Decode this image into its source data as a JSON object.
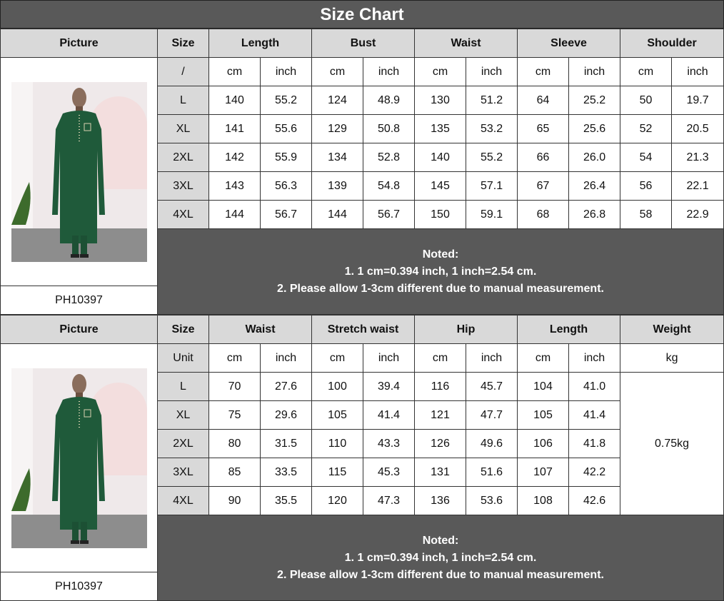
{
  "title": "Size Chart",
  "colors": {
    "title_bg": "#595959",
    "header_bg": "#d9d9d9",
    "notes_bg": "#595959",
    "robe": "#1f5a3a"
  },
  "sections": [
    {
      "picture_label": "Picture",
      "product_code": "PH10397",
      "size_label": "Size",
      "groups": [
        "Length",
        "Bust",
        "Waist",
        "Sleeve",
        "Shoulder"
      ],
      "unit_row_label": "/",
      "units": [
        "cm",
        "inch"
      ],
      "rows": [
        {
          "size": "L",
          "values": [
            "140",
            "55.2",
            "124",
            "48.9",
            "130",
            "51.2",
            "64",
            "25.2",
            "50",
            "19.7"
          ]
        },
        {
          "size": "XL",
          "values": [
            "141",
            "55.6",
            "129",
            "50.8",
            "135",
            "53.2",
            "65",
            "25.6",
            "52",
            "20.5"
          ]
        },
        {
          "size": "2XL",
          "values": [
            "142",
            "55.9",
            "134",
            "52.8",
            "140",
            "55.2",
            "66",
            "26.0",
            "54",
            "21.3"
          ]
        },
        {
          "size": "3XL",
          "values": [
            "143",
            "56.3",
            "139",
            "54.8",
            "145",
            "57.1",
            "67",
            "26.4",
            "56",
            "22.1"
          ]
        },
        {
          "size": "4XL",
          "values": [
            "144",
            "56.7",
            "144",
            "56.7",
            "150",
            "59.1",
            "68",
            "26.8",
            "58",
            "22.9"
          ]
        }
      ],
      "notes": [
        "Noted:",
        "1. 1 cm=0.394 inch, 1 inch=2.54 cm.",
        "2. Please allow 1-3cm different due to manual measurement."
      ]
    },
    {
      "picture_label": "Picture",
      "product_code": "PH10397",
      "size_label": "Size",
      "groups": [
        "Waist",
        "Stretch waist",
        "Hip",
        "Length"
      ],
      "extra_group": "Weight",
      "extra_unit": "kg",
      "extra_value": "0.75kg",
      "unit_row_label": "Unit",
      "units": [
        "cm",
        "inch"
      ],
      "rows": [
        {
          "size": "L",
          "values": [
            "70",
            "27.6",
            "100",
            "39.4",
            "116",
            "45.7",
            "104",
            "41.0"
          ]
        },
        {
          "size": "XL",
          "values": [
            "75",
            "29.6",
            "105",
            "41.4",
            "121",
            "47.7",
            "105",
            "41.4"
          ]
        },
        {
          "size": "2XL",
          "values": [
            "80",
            "31.5",
            "110",
            "43.3",
            "126",
            "49.6",
            "106",
            "41.8"
          ]
        },
        {
          "size": "3XL",
          "values": [
            "85",
            "33.5",
            "115",
            "45.3",
            "131",
            "51.6",
            "107",
            "42.2"
          ]
        },
        {
          "size": "4XL",
          "values": [
            "90",
            "35.5",
            "120",
            "47.3",
            "136",
            "53.6",
            "108",
            "42.6"
          ]
        }
      ],
      "notes": [
        "Noted:",
        "1. 1 cm=0.394 inch, 1 inch=2.54 cm.",
        "2. Please allow 1-3cm different due to manual measurement."
      ]
    }
  ]
}
